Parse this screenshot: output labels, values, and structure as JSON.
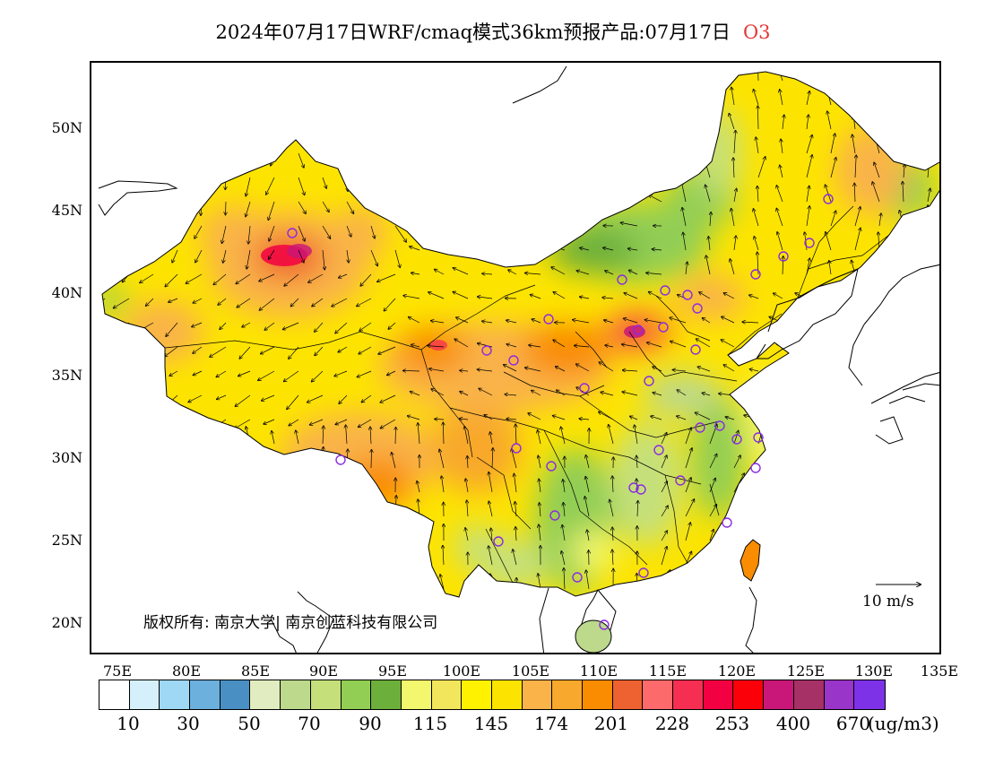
{
  "title": {
    "main": "2024年07月17日WRF/cmaq模式36km预报产品:07月17日",
    "species": "O3"
  },
  "map": {
    "lat_labels": [
      "50N",
      "45N",
      "40N",
      "35N",
      "30N",
      "25N",
      "20N"
    ],
    "lon_labels": [
      "75E",
      "80E",
      "85E",
      "90E",
      "95E",
      "100E",
      "105E",
      "110E",
      "115E",
      "120E",
      "125E",
      "130E",
      "135E"
    ],
    "copyright": "版权所有: 南京大学| 南京创蓝科技有限公司",
    "reference_vector_label": "10 m/s",
    "station_marker_color": "#8a2be2"
  },
  "colorbar": {
    "colors": [
      "#ffffff",
      "#d6f0fb",
      "#9ed8f4",
      "#6cb0de",
      "#4a8fc4",
      "#e1ecc0",
      "#bcd98c",
      "#c5e07b",
      "#92ce54",
      "#6caf3a",
      "#f3f76e",
      "#f2e65c",
      "#fff200",
      "#fde400",
      "#f9b348",
      "#f8a82c",
      "#f98c00",
      "#ee6231",
      "#fc6a6b",
      "#f52e52",
      "#f20042",
      "#fb0008",
      "#c81778",
      "#a63166",
      "#9a35c9",
      "#7d32e8"
    ],
    "labels": [
      "10",
      "30",
      "50",
      "70",
      "90",
      "115",
      "145",
      "174",
      "201",
      "228",
      "253",
      "400",
      "670"
    ],
    "units": "(ug/m3)"
  }
}
